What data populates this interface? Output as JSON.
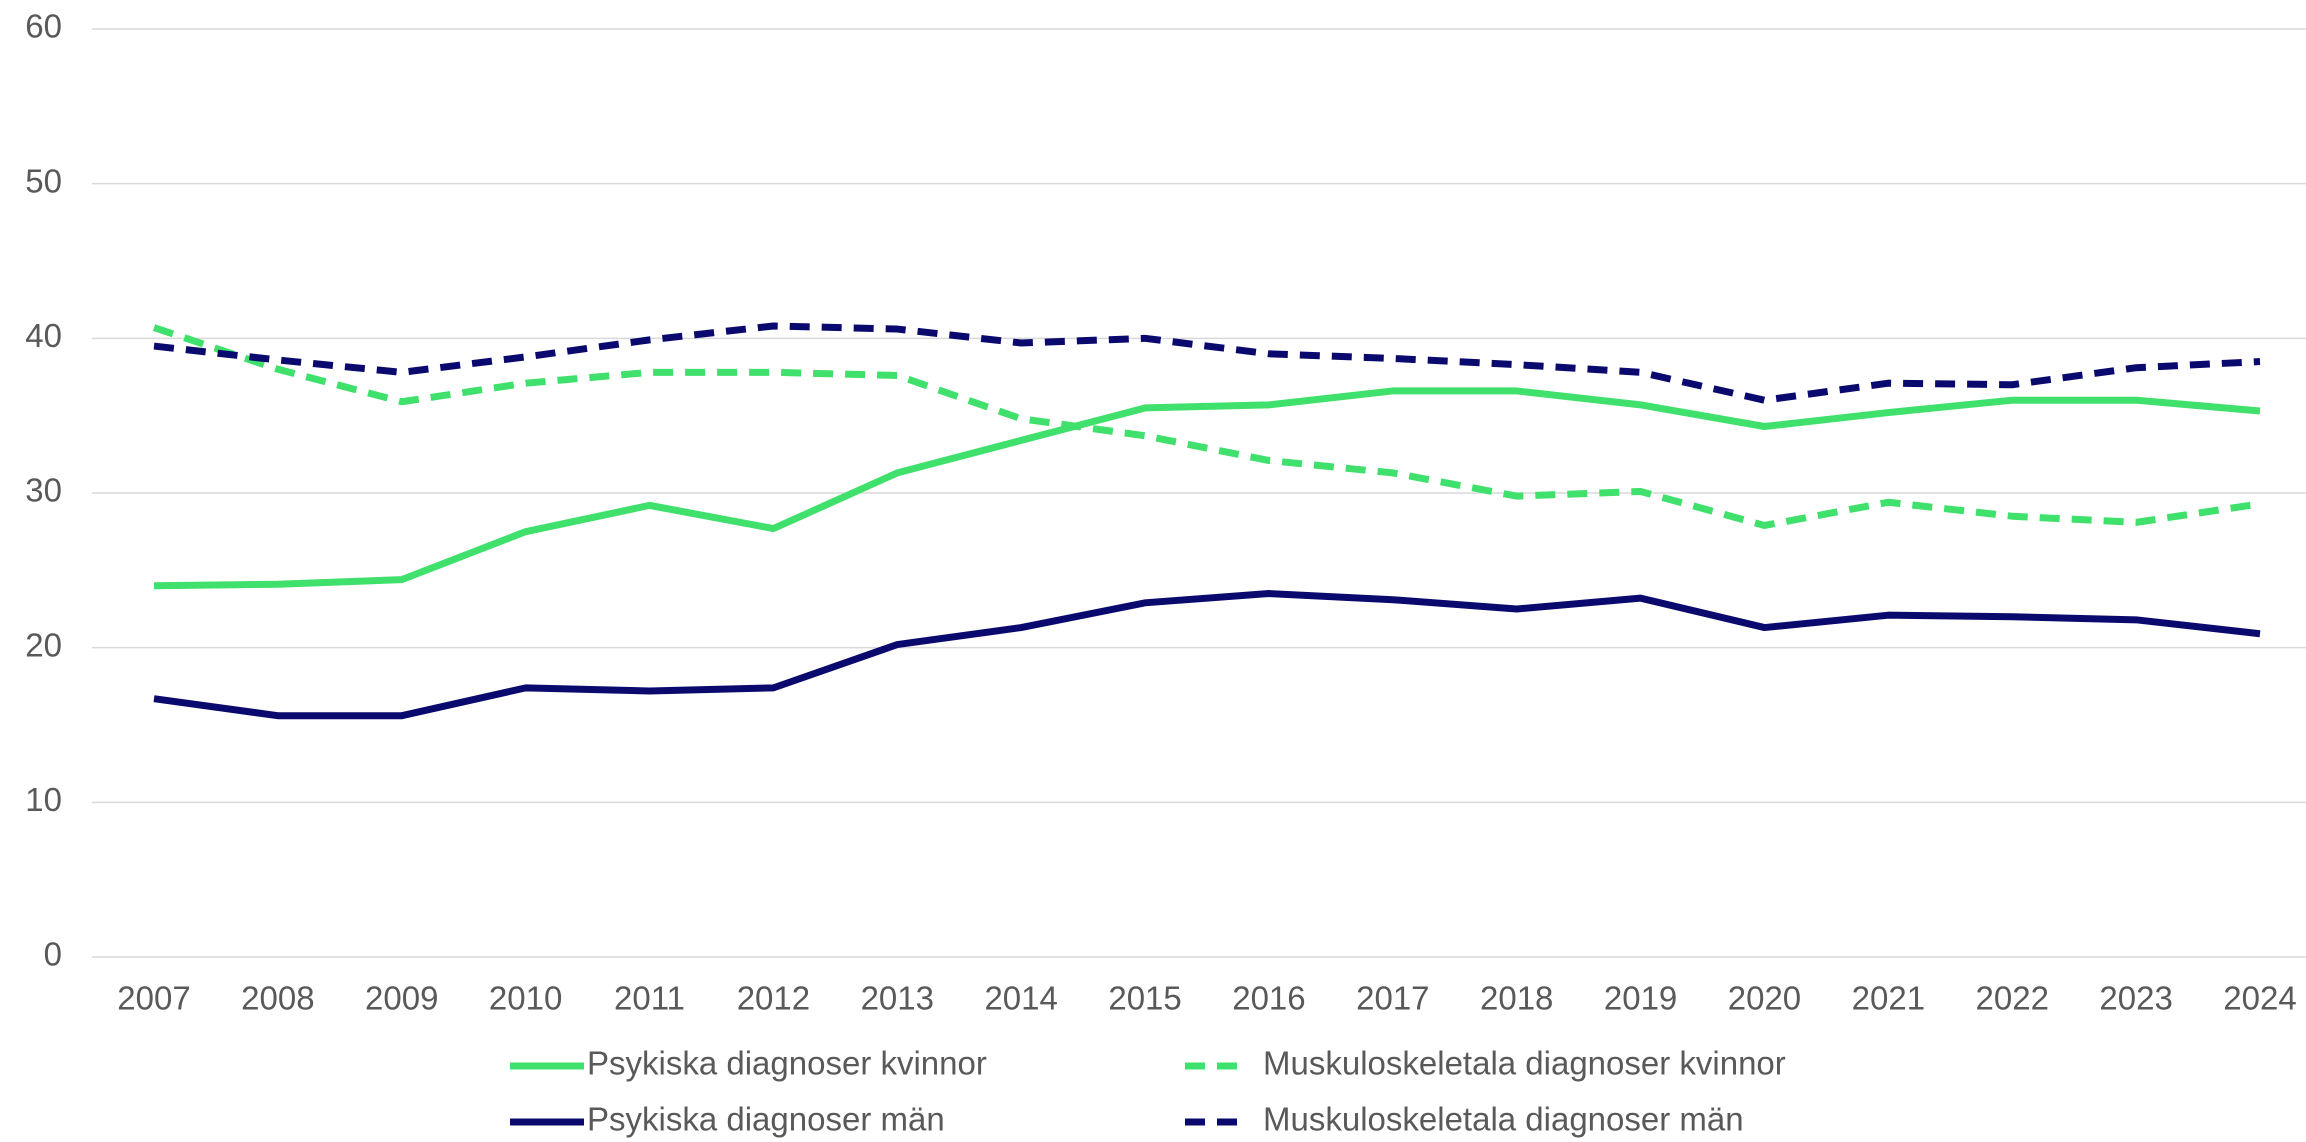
{
  "chart_data": {
    "type": "line",
    "categories": [
      "2007",
      "2008",
      "2009",
      "2010",
      "2011",
      "2012",
      "2013",
      "2014",
      "2015",
      "2016",
      "2017",
      "2018",
      "2019",
      "2020",
      "2021",
      "2022",
      "2023",
      "2024"
    ],
    "series": [
      {
        "name": "Psykiska diagnoser kvinnor",
        "color": "#3fe06b",
        "dashed": false,
        "values": [
          24.0,
          24.1,
          24.4,
          27.5,
          29.2,
          27.7,
          31.3,
          33.4,
          35.5,
          35.7,
          36.6,
          36.6,
          35.7,
          34.3,
          35.2,
          36.0,
          36.0,
          35.3
        ]
      },
      {
        "name": "Muskuloskeletala diagnoser kvinnor",
        "color": "#3fe06b",
        "dashed": true,
        "values": [
          40.7,
          38.0,
          35.9,
          37.1,
          37.8,
          37.8,
          37.6,
          34.8,
          33.7,
          32.1,
          31.3,
          29.8,
          30.1,
          27.9,
          29.4,
          28.5,
          28.1,
          29.3
        ]
      },
      {
        "name": "Psykiska diagnoser män",
        "color": "#0a0a6e",
        "dashed": false,
        "values": [
          16.7,
          15.6,
          15.6,
          17.4,
          17.2,
          17.4,
          20.2,
          21.3,
          22.9,
          23.5,
          23.1,
          22.5,
          23.2,
          21.3,
          22.1,
          22.0,
          21.8,
          20.9
        ]
      },
      {
        "name": "Muskuloskeletala diagnoser män",
        "color": "#0a0a6e",
        "dashed": true,
        "values": [
          39.5,
          38.6,
          37.8,
          38.8,
          39.9,
          40.8,
          40.6,
          39.7,
          40.0,
          39.0,
          38.7,
          38.3,
          37.8,
          36.0,
          37.1,
          37.0,
          38.1,
          38.5
        ]
      }
    ],
    "ylim": [
      0,
      60
    ],
    "yticks": [
      0,
      10,
      20,
      30,
      40,
      50,
      60
    ],
    "grid": true,
    "legend": "bottom"
  }
}
